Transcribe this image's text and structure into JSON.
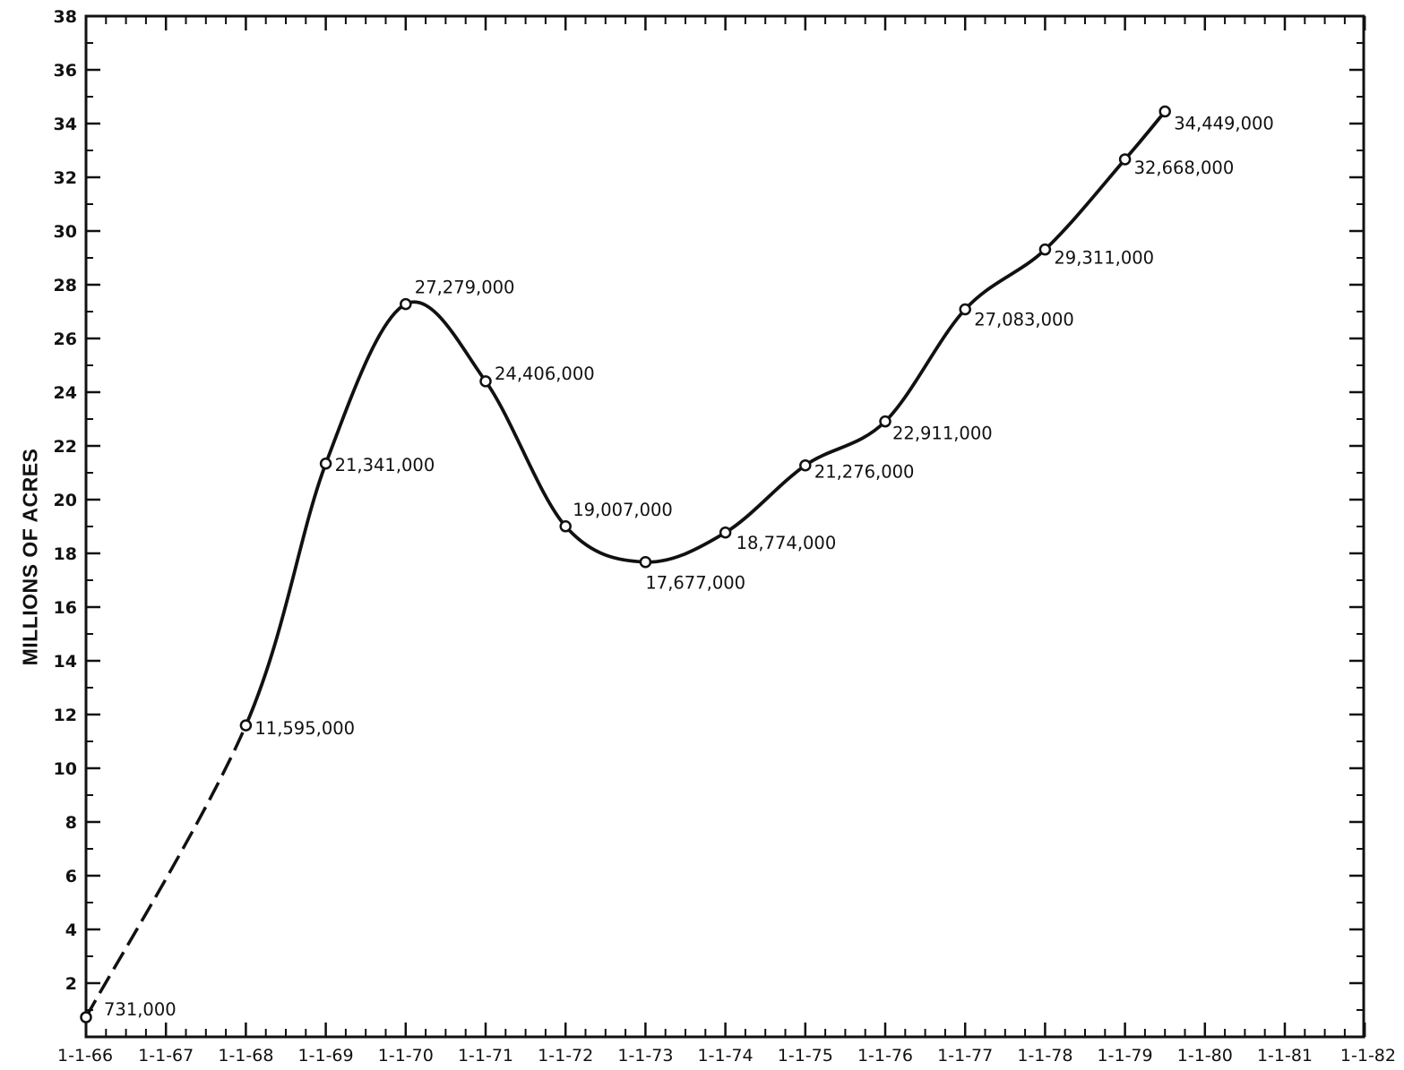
{
  "chart_data": {
    "type": "line",
    "title": "",
    "xlabel": "",
    "ylabel": "MILLIONS OF ACRES",
    "ylim": [
      0,
      38
    ],
    "xlim": [
      "1-1-66",
      "1-1-82"
    ],
    "grid": false,
    "y_ticks": [
      "2",
      "4",
      "6",
      "8",
      "10",
      "12",
      "14",
      "16",
      "18",
      "20",
      "22",
      "24",
      "26",
      "28",
      "30",
      "32",
      "34",
      "36",
      "38"
    ],
    "x_ticks": [
      "1-1-66",
      "1-1-67",
      "1-1-68",
      "1-1-69",
      "1-1-70",
      "1-1-71",
      "1-1-72",
      "1-1-73",
      "1-1-74",
      "1-1-75",
      "1-1-76",
      "1-1-77",
      "1-1-78",
      "1-1-79",
      "1-1-80",
      "1-1-81",
      "1-1-82"
    ],
    "series": [
      {
        "points": [
          {
            "x": "1-1-66",
            "y": 0.731,
            "label": "731,000"
          },
          {
            "x": "1-1-68",
            "y": 11.595,
            "label": "11,595,000"
          },
          {
            "x": "1-1-69",
            "y": 21.341,
            "label": "21,341,000"
          },
          {
            "x": "1-1-70",
            "y": 27.279,
            "label": "27,279,000"
          },
          {
            "x": "1-1-71",
            "y": 24.406,
            "label": "24,406,000"
          },
          {
            "x": "1-1-72",
            "y": 19.007,
            "label": "19,007,000"
          },
          {
            "x": "1-1-73",
            "y": 17.677,
            "label": "17,677,000"
          },
          {
            "x": "1-1-74",
            "y": 18.774,
            "label": "18,774,000"
          },
          {
            "x": "1-1-75",
            "y": 21.276,
            "label": "21,276,000"
          },
          {
            "x": "1-1-76",
            "y": 22.911,
            "label": "22,911,000"
          },
          {
            "x": "1-1-77",
            "y": 27.083,
            "label": "27,083,000"
          },
          {
            "x": "1-1-78",
            "y": 29.311,
            "label": "29,311,000"
          },
          {
            "x": "1-1-79",
            "y": 32.668,
            "label": "32,668,000"
          },
          {
            "x": "7-1-79",
            "y": 34.449,
            "label": "34,449,000"
          }
        ],
        "dashed_segment": [
          "1-1-66",
          "1-1-68"
        ]
      }
    ]
  }
}
